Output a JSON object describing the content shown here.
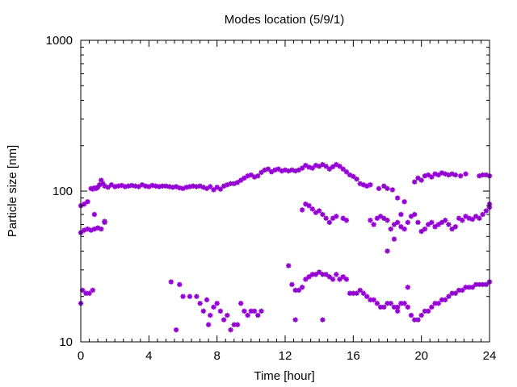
{
  "chart_data": {
    "type": "scatter",
    "title": "Modes location (5/9/1)",
    "xlabel": "Time [hour]",
    "ylabel": "Particle size [nm]",
    "xlim": [
      0,
      24
    ],
    "ylim": [
      10,
      1000
    ],
    "yscale": "log",
    "x_ticks": [
      0,
      4,
      8,
      12,
      16,
      20,
      24
    ],
    "x_tick_labels": [
      "0",
      "4",
      "8",
      "12",
      "16",
      "20",
      "24"
    ],
    "y_ticks": [
      10,
      100,
      1000
    ],
    "y_tick_labels": [
      "10",
      "100",
      "1000"
    ],
    "grid": false,
    "legend": "none",
    "marker_color": "#9400d3",
    "series": [
      {
        "points": [
          [
            0.0,
            80
          ],
          [
            0.2,
            82
          ],
          [
            0.4,
            85
          ],
          [
            0.6,
            104
          ],
          [
            0.7,
            103
          ],
          [
            0.8,
            105
          ],
          [
            0.9,
            104
          ],
          [
            1.0,
            106
          ],
          [
            1.1,
            110
          ],
          [
            1.2,
            118
          ],
          [
            1.3,
            112
          ],
          [
            1.4,
            108
          ],
          [
            1.6,
            106
          ],
          [
            1.8,
            110
          ],
          [
            2.0,
            107
          ],
          [
            2.2,
            108
          ],
          [
            2.4,
            109
          ],
          [
            2.6,
            107
          ],
          [
            2.8,
            108
          ],
          [
            3.0,
            109
          ],
          [
            3.2,
            108
          ],
          [
            3.4,
            107
          ],
          [
            3.6,
            110
          ],
          [
            3.8,
            108
          ],
          [
            4.0,
            107
          ],
          [
            4.2,
            109
          ],
          [
            4.4,
            108
          ],
          [
            4.6,
            107
          ],
          [
            4.8,
            108
          ],
          [
            5.0,
            108
          ],
          [
            5.2,
            107
          ],
          [
            5.4,
            106
          ],
          [
            5.6,
            107
          ],
          [
            5.8,
            105
          ],
          [
            6.0,
            104
          ],
          [
            6.2,
            106
          ],
          [
            6.4,
            107
          ],
          [
            6.6,
            108
          ],
          [
            6.8,
            107
          ],
          [
            7.0,
            108
          ],
          [
            7.2,
            106
          ],
          [
            7.4,
            104
          ],
          [
            7.6,
            107
          ],
          [
            7.8,
            102
          ],
          [
            8.0,
            106
          ],
          [
            8.2,
            103
          ],
          [
            8.4,
            108
          ],
          [
            8.6,
            110
          ],
          [
            8.8,
            112
          ],
          [
            9.0,
            112
          ],
          [
            9.2,
            114
          ],
          [
            9.4,
            118
          ],
          [
            9.6,
            122
          ],
          [
            9.8,
            126
          ],
          [
            10.0,
            128
          ],
          [
            10.2,
            124
          ],
          [
            10.4,
            126
          ],
          [
            10.6,
            133
          ],
          [
            10.8,
            138
          ],
          [
            11.0,
            140
          ],
          [
            11.2,
            134
          ],
          [
            11.4,
            138
          ],
          [
            11.6,
            140
          ],
          [
            11.8,
            136
          ],
          [
            12.0,
            138
          ],
          [
            12.2,
            136
          ],
          [
            12.4,
            138
          ],
          [
            12.6,
            136
          ],
          [
            12.8,
            138
          ],
          [
            13.0,
            142
          ],
          [
            13.2,
            148
          ],
          [
            13.4,
            144
          ],
          [
            13.6,
            142
          ],
          [
            13.8,
            148
          ],
          [
            14.0,
            146
          ],
          [
            14.2,
            150
          ],
          [
            14.4,
            146
          ],
          [
            14.6,
            140
          ],
          [
            14.8,
            145
          ],
          [
            15.0,
            150
          ],
          [
            15.2,
            146
          ],
          [
            15.4,
            140
          ],
          [
            15.6,
            134
          ],
          [
            15.8,
            128
          ],
          [
            16.0,
            125
          ],
          [
            16.2,
            120
          ],
          [
            16.4,
            112
          ],
          [
            16.6,
            110
          ],
          [
            16.8,
            108
          ],
          [
            17.0,
            110
          ],
          [
            17.5,
            104
          ],
          [
            17.8,
            108
          ],
          [
            18.0,
            104
          ],
          [
            18.3,
            102
          ],
          [
            18.6,
            90
          ],
          [
            19.0,
            85
          ],
          [
            19.6,
            115
          ],
          [
            19.8,
            122
          ],
          [
            20.0,
            118
          ],
          [
            20.2,
            126
          ],
          [
            20.4,
            128
          ],
          [
            20.6,
            124
          ],
          [
            20.8,
            130
          ],
          [
            21.0,
            128
          ],
          [
            21.2,
            132
          ],
          [
            21.4,
            130
          ],
          [
            21.6,
            128
          ],
          [
            21.8,
            130
          ],
          [
            22.0,
            128
          ],
          [
            22.3,
            126
          ],
          [
            22.6,
            130
          ],
          [
            23.4,
            126
          ],
          [
            23.6,
            128
          ],
          [
            23.8,
            128
          ],
          [
            24.0,
            126
          ],
          [
            0.0,
            53
          ],
          [
            0.2,
            55
          ],
          [
            0.4,
            56
          ],
          [
            0.6,
            55
          ],
          [
            0.8,
            56
          ],
          [
            1.0,
            57
          ],
          [
            1.2,
            56
          ],
          [
            1.4,
            62
          ],
          [
            0.8,
            70
          ],
          [
            1.4,
            63
          ],
          [
            13.0,
            75
          ],
          [
            13.2,
            82
          ],
          [
            13.4,
            80
          ],
          [
            13.6,
            76
          ],
          [
            13.8,
            72
          ],
          [
            14.0,
            74
          ],
          [
            14.2,
            70
          ],
          [
            14.4,
            66
          ],
          [
            14.6,
            62
          ],
          [
            14.8,
            66
          ],
          [
            15.0,
            68
          ],
          [
            15.4,
            66
          ],
          [
            15.6,
            64
          ],
          [
            17.0,
            64
          ],
          [
            17.2,
            60
          ],
          [
            17.4,
            66
          ],
          [
            17.6,
            68
          ],
          [
            17.8,
            66
          ],
          [
            18.0,
            64
          ],
          [
            18.2,
            56
          ],
          [
            18.4,
            60
          ],
          [
            18.6,
            62
          ],
          [
            18.8,
            58
          ],
          [
            19.0,
            56
          ],
          [
            19.2,
            62
          ],
          [
            19.4,
            68
          ],
          [
            19.6,
            70
          ],
          [
            19.8,
            62
          ],
          [
            20.0,
            54
          ],
          [
            20.2,
            56
          ],
          [
            20.4,
            60
          ],
          [
            20.6,
            62
          ],
          [
            20.8,
            58
          ],
          [
            21.0,
            60
          ],
          [
            21.2,
            62
          ],
          [
            21.4,
            64
          ],
          [
            21.6,
            60
          ],
          [
            21.8,
            56
          ],
          [
            22.0,
            58
          ],
          [
            22.2,
            66
          ],
          [
            22.4,
            64
          ],
          [
            22.6,
            68
          ],
          [
            22.8,
            66
          ],
          [
            23.0,
            65
          ],
          [
            23.2,
            68
          ],
          [
            23.4,
            66
          ],
          [
            23.6,
            70
          ],
          [
            23.8,
            74
          ],
          [
            24.0,
            78
          ],
          [
            24.0,
            82
          ],
          [
            18.0,
            40
          ],
          [
            18.4,
            48
          ],
          [
            18.8,
            70
          ],
          [
            0.0,
            18
          ],
          [
            0.1,
            22
          ],
          [
            0.3,
            21
          ],
          [
            0.5,
            21
          ],
          [
            0.7,
            22
          ],
          [
            5.3,
            25
          ],
          [
            5.8,
            24
          ],
          [
            6.4,
            20
          ],
          [
            6.8,
            20
          ],
          [
            7.0,
            18
          ],
          [
            7.2,
            16
          ],
          [
            7.5,
            13
          ],
          [
            7.6,
            15
          ],
          [
            7.8,
            17
          ],
          [
            8.0,
            18
          ],
          [
            8.2,
            16
          ],
          [
            8.4,
            14
          ],
          [
            8.6,
            15
          ],
          [
            9.0,
            13
          ],
          [
            9.4,
            18
          ],
          [
            9.6,
            16
          ],
          [
            9.8,
            15
          ],
          [
            10.0,
            16
          ],
          [
            10.2,
            16
          ],
          [
            10.4,
            15
          ],
          [
            10.6,
            16
          ],
          [
            12.2,
            32
          ],
          [
            12.4,
            24
          ],
          [
            12.6,
            22
          ],
          [
            12.8,
            22
          ],
          [
            13.0,
            23
          ],
          [
            13.2,
            26
          ],
          [
            13.4,
            27
          ],
          [
            13.6,
            28
          ],
          [
            13.8,
            28
          ],
          [
            14.0,
            29
          ],
          [
            14.2,
            28
          ],
          [
            14.4,
            28
          ],
          [
            14.6,
            27
          ],
          [
            14.8,
            26
          ],
          [
            15.0,
            28
          ],
          [
            15.2,
            26
          ],
          [
            15.4,
            27
          ],
          [
            15.6,
            26
          ],
          [
            15.8,
            21
          ],
          [
            16.0,
            21
          ],
          [
            16.2,
            21
          ],
          [
            16.4,
            22
          ],
          [
            16.6,
            21
          ],
          [
            16.8,
            20
          ],
          [
            17.0,
            19
          ],
          [
            17.2,
            19
          ],
          [
            17.4,
            18
          ],
          [
            17.6,
            17
          ],
          [
            17.8,
            17
          ],
          [
            18.0,
            18
          ],
          [
            18.2,
            18
          ],
          [
            18.4,
            17
          ],
          [
            18.6,
            17
          ],
          [
            18.8,
            18
          ],
          [
            19.0,
            18
          ],
          [
            19.2,
            17
          ],
          [
            19.4,
            15
          ],
          [
            19.6,
            14
          ],
          [
            19.8,
            14
          ],
          [
            20.0,
            15
          ],
          [
            20.2,
            16
          ],
          [
            20.4,
            16
          ],
          [
            20.6,
            17
          ],
          [
            20.8,
            18
          ],
          [
            21.0,
            18
          ],
          [
            21.2,
            19
          ],
          [
            21.4,
            19
          ],
          [
            21.6,
            20
          ],
          [
            21.8,
            21
          ],
          [
            22.0,
            21
          ],
          [
            22.2,
            22
          ],
          [
            22.4,
            22
          ],
          [
            22.6,
            23
          ],
          [
            22.8,
            23
          ],
          [
            23.0,
            23
          ],
          [
            23.2,
            24
          ],
          [
            23.4,
            24
          ],
          [
            23.6,
            24
          ],
          [
            23.8,
            24
          ],
          [
            24.0,
            25
          ],
          [
            5.6,
            12
          ],
          [
            6.0,
            20
          ],
          [
            7.4,
            19
          ],
          [
            8.8,
            12
          ],
          [
            9.2,
            13
          ],
          [
            12.6,
            14
          ],
          [
            14.2,
            14
          ],
          [
            18.6,
            16
          ],
          [
            19.2,
            23
          ]
        ]
      }
    ]
  }
}
